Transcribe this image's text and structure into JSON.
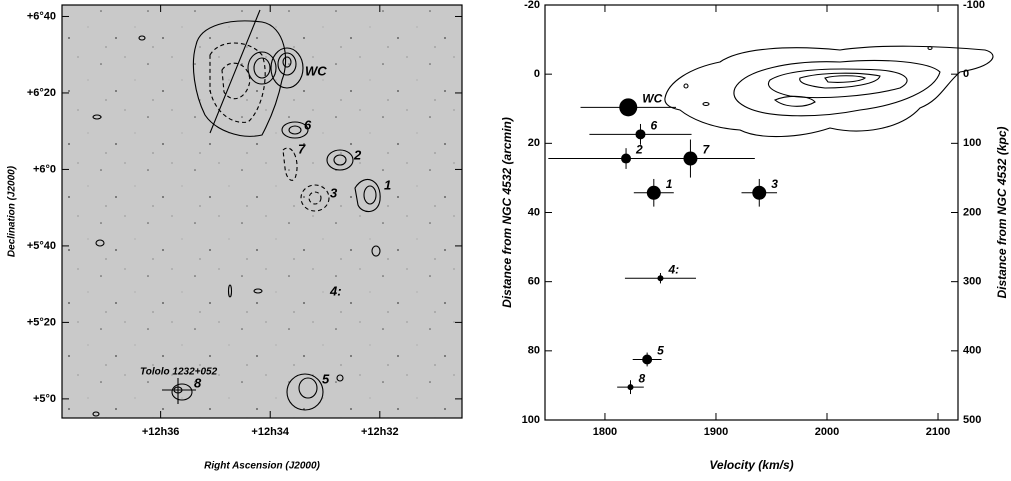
{
  "chart_data": [
    {
      "type": "image",
      "xlabel": "Right Ascension (J2000)",
      "ylabel": "Declination (J2000)",
      "xlim": [
        37.8,
        30.5
      ],
      "xticks": [
        {
          "value": 36,
          "label": "+12h36"
        },
        {
          "value": 34,
          "label": "+12h34"
        },
        {
          "value": 32,
          "label": "+12h32"
        }
      ],
      "ylim": [
        295,
        403
      ],
      "yticks": [
        {
          "value": 400,
          "label": "+6°40"
        },
        {
          "value": 380,
          "label": "+6°20"
        },
        {
          "value": 360,
          "label": "+6°0"
        },
        {
          "value": 340,
          "label": "+5°40"
        },
        {
          "value": 320,
          "label": "+5°20"
        },
        {
          "value": 300,
          "label": "+5°0"
        }
      ],
      "annotations": [
        "WC",
        "6",
        "7",
        "2",
        "3",
        "1",
        "4:",
        "5",
        "Tololo 1232+052",
        "8"
      ]
    },
    {
      "type": "scatter",
      "xlabel": "Velocity (km/s)",
      "ylabel": "Distance from NGC 4532 (arcmin)",
      "y2label": "Distance from NGC 4532 (kpc)",
      "xlim": [
        1746,
        2118
      ],
      "xticks": [
        1800,
        1900,
        2000,
        2100
      ],
      "ylim": [
        -20,
        100
      ],
      "yticks": [
        -20,
        0,
        20,
        40,
        60,
        80,
        100
      ],
      "y_inverted": true,
      "y2lim": [
        -100,
        500
      ],
      "y2ticks": [
        -100,
        0,
        100,
        200,
        300,
        400,
        500
      ],
      "series": [
        {
          "names": [
            "WC",
            "6",
            "7",
            "2",
            "1",
            "3",
            "4:",
            "5",
            "8"
          ],
          "x": [
            1821,
            1832,
            1877,
            1819,
            1844,
            1939,
            1850,
            1838,
            1823
          ],
          "values": [
            9.6,
            17.4,
            24.4,
            24.4,
            34.3,
            34.3,
            59,
            82.5,
            90.5
          ],
          "xerr": [
            43,
            46,
            58,
            70,
            18,
            16,
            32,
            13,
            12
          ],
          "yerr": [
            null,
            3,
            5.5,
            3,
            4,
            4,
            1.5,
            2,
            2
          ],
          "sizes": [
            9,
            5,
            7,
            5,
            7,
            7,
            3,
            5,
            3
          ],
          "color": "#000000"
        }
      ]
    }
  ]
}
